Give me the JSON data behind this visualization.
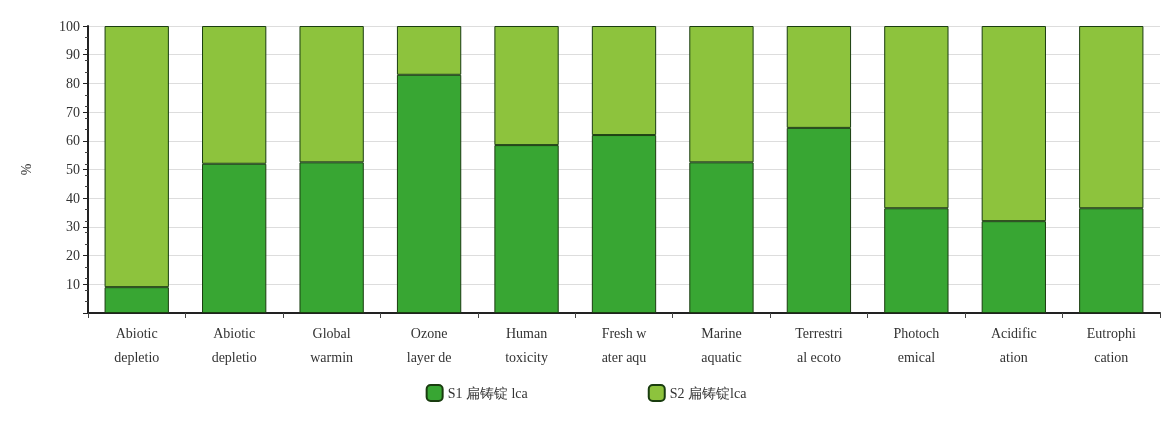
{
  "chart_data": {
    "type": "bar",
    "stacked": true,
    "ylabel": "%",
    "categories": [
      "Abiotic\ndepletio",
      "Abiotic\ndepletio",
      "Global\nwarmin",
      "Ozone\nlayer de",
      "Human\ntoxicity",
      "Fresh w\nater aqu",
      "Marine\naquatic",
      "Terrestri\nal ecoto",
      "Photoch\nemical",
      "Acidific\nation",
      "Eutrophi\ncation"
    ],
    "series": [
      {
        "name": "S1 扁铸锭 lca",
        "color": "#38a633",
        "values": [
          9,
          52,
          52.5,
          83,
          58.5,
          62,
          52.5,
          64.5,
          36.5,
          32,
          36.5
        ]
      },
      {
        "name": "S2 扁铸锭lca",
        "color": "#8dc33d",
        "values": [
          91,
          48,
          47.5,
          17,
          41.5,
          38,
          47.5,
          35.5,
          63.5,
          68,
          63.5
        ]
      }
    ],
    "ylim": [
      0,
      100
    ],
    "yticks": [
      {
        "value": 0,
        "label": null
      },
      10,
      20,
      30,
      40,
      50,
      60,
      70,
      80,
      90,
      100
    ],
    "grid": "y",
    "legend": "bottom"
  }
}
